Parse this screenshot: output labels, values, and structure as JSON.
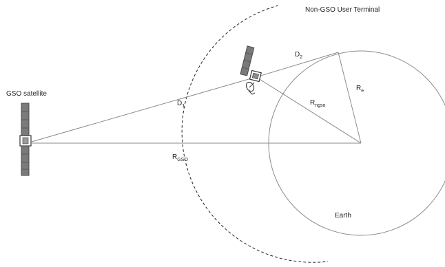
{
  "labels": {
    "gso_satellite": "GSO satellite",
    "ngso_terminal": "Non-GSO User Terminal",
    "d1_main": "D",
    "d1_sub": "1",
    "d2_main": "D",
    "d2_sub": "2",
    "r_gso_main": "R",
    "r_gso_sub": "GSO",
    "r_ngso_main": "R",
    "r_ngso_sub": "ngso",
    "r_e_main": "R",
    "r_e_sub": "e",
    "earth": "Earth"
  },
  "colors": {
    "line": "#8a8a8a",
    "dashed_orbit": "#333333",
    "panel": "#7a7a7a",
    "panel_dark": "#4a4a4a"
  },
  "icons": [
    "gso-satellite-icon",
    "ngso-satellite-icon",
    "antenna-dish-icon"
  ]
}
